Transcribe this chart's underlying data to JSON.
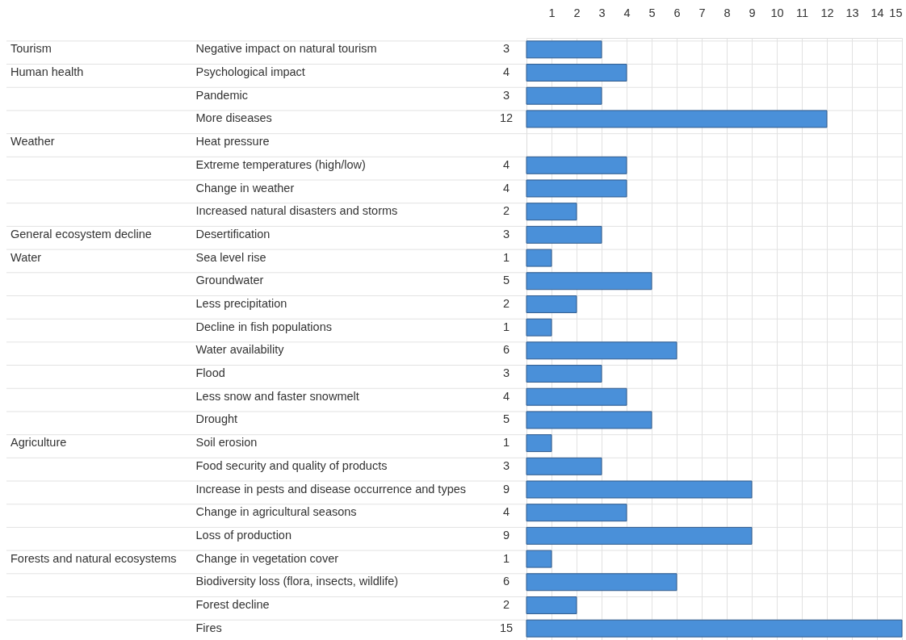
{
  "chart_data": {
    "type": "bar",
    "orientation": "horizontal",
    "categories": [
      "Negative impact on natural tourism",
      "Psychological impact",
      "Pandemic",
      "More diseases",
      "Heat pressure",
      "Extreme temperatures (high/low)",
      "Change in weather",
      "Increased natural disasters and storms",
      "Desertification",
      "Sea level rise",
      "Groundwater",
      "Less precipitation",
      "Decline in fish populations",
      "Water availability",
      "Flood",
      "Less snow and faster snowmelt",
      "Drought",
      "Soil erosion",
      "Food security and quality of products",
      "Increase in pests and disease occurrence and types",
      "Change in agricultural seasons",
      "Loss of production",
      "Change in vegetation cover",
      "Biodiversity loss (flora, insects, wildlife)",
      "Forest decline",
      "Fires"
    ],
    "values": [
      3,
      4,
      3,
      12,
      null,
      4,
      4,
      2,
      3,
      1,
      5,
      2,
      1,
      6,
      3,
      4,
      5,
      1,
      3,
      9,
      4,
      9,
      1,
      6,
      2,
      15
    ],
    "color": "#4a90d9",
    "xlim": [
      0,
      15
    ],
    "xticks": [
      1,
      2,
      3,
      4,
      5,
      6,
      7,
      8,
      9,
      10,
      11,
      12,
      13,
      14,
      15
    ],
    "grid": true,
    "data_labels": true,
    "annotations": [
      "Tourism",
      "Human health",
      "Weather",
      "General ecosystem decline",
      "Water",
      "Agriculture",
      "Forests and natural ecosystems"
    ]
  }
}
